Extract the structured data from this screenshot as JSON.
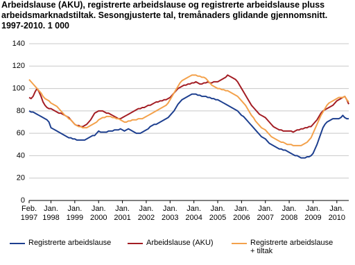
{
  "chart_data": {
    "type": "line",
    "title": "Arbeidslause (AKU), registrerte arbeidslause og registrerte arbeidslause pluss arbeidsmarknadstiltak. Sesongjusterte tal, tremånaders glidande gjennomsnitt. 1997-2010. 1 000",
    "categories": [
      "Feb. 1997",
      null,
      null,
      null,
      null,
      null,
      null,
      null,
      null,
      null,
      null,
      "Jan. 1998",
      null,
      null,
      null,
      null,
      null,
      null,
      null,
      null,
      null,
      null,
      null,
      "Jan. 1999",
      null,
      null,
      null,
      null,
      null,
      null,
      null,
      null,
      null,
      null,
      null,
      "Jan. 2000",
      null,
      null,
      null,
      null,
      null,
      null,
      null,
      null,
      null,
      null,
      null,
      "Jan. 2001",
      null,
      null,
      null,
      null,
      null,
      null,
      null,
      null,
      null,
      null,
      null,
      "Jan. 2002",
      null,
      null,
      null,
      null,
      null,
      null,
      null,
      null,
      null,
      null,
      null,
      "Jan. 2003",
      null,
      null,
      null,
      null,
      null,
      null,
      null,
      null,
      null,
      null,
      null,
      "Jan. 2004",
      null,
      null,
      null,
      null,
      null,
      null,
      null,
      null,
      null,
      null,
      null,
      "Jan. 2005",
      null,
      null,
      null,
      null,
      null,
      null,
      null,
      null,
      null,
      null,
      null,
      "Jan. 2006",
      null,
      null,
      null,
      null,
      null,
      null,
      null,
      null,
      null,
      null,
      null,
      "Jan. 2007",
      null,
      null,
      null,
      null,
      null,
      null,
      null,
      null,
      null,
      null,
      null,
      "Jan. 2008",
      null,
      null,
      null,
      null,
      null,
      null,
      null,
      null,
      null,
      null,
      null,
      "Jan. 2009",
      null,
      null,
      null,
      null,
      null,
      null,
      null,
      null,
      null,
      null,
      null,
      "Jan. 2010",
      null,
      null,
      null,
      null,
      null,
      null
    ],
    "series": [
      {
        "name": "Registrerte arbeidslause",
        "color": "#1d3f8f",
        "values": [
          80,
          79,
          79,
          78,
          77,
          76,
          75,
          74,
          73,
          72,
          70,
          65,
          64,
          63,
          62,
          61,
          60,
          59,
          58,
          57,
          56,
          56,
          55,
          55,
          54,
          54,
          54,
          54,
          54,
          55,
          56,
          57,
          58,
          58,
          60,
          62,
          61,
          61,
          61,
          61,
          62,
          62,
          62,
          63,
          63,
          63,
          64,
          63,
          62,
          63,
          64,
          63,
          62,
          61,
          60,
          60,
          60,
          61,
          62,
          63,
          64,
          66,
          67,
          68,
          68,
          69,
          70,
          71,
          72,
          73,
          74,
          76,
          78,
          80,
          83,
          86,
          88,
          90,
          91,
          92,
          93,
          94,
          95,
          95,
          95,
          94,
          94,
          93,
          93,
          93,
          92,
          92,
          91,
          91,
          90,
          90,
          89,
          88,
          87,
          86,
          85,
          84,
          83,
          82,
          81,
          80,
          78,
          76,
          75,
          73,
          71,
          69,
          67,
          65,
          63,
          61,
          59,
          57,
          56,
          55,
          53,
          51,
          50,
          49,
          48,
          47,
          46,
          46,
          45,
          45,
          44,
          43,
          42,
          41,
          40,
          40,
          39,
          38,
          38,
          38,
          39,
          39,
          40,
          42,
          46,
          50,
          55,
          60,
          65,
          68,
          70,
          71,
          72,
          73,
          73,
          73,
          73,
          74,
          76,
          74,
          73,
          73
        ]
      },
      {
        "name": "Arbeidslause (AKU)",
        "color": "#a31d24",
        "values": [
          92,
          91,
          93,
          97,
          100,
          97,
          93,
          88,
          85,
          83,
          82,
          82,
          81,
          80,
          79,
          78,
          78,
          77,
          76,
          75,
          74,
          72,
          70,
          68,
          67,
          67,
          66,
          66,
          67,
          68,
          70,
          72,
          75,
          78,
          79,
          80,
          80,
          80,
          79,
          78,
          78,
          77,
          76,
          75,
          74,
          73,
          73,
          74,
          75,
          76,
          77,
          78,
          79,
          80,
          81,
          82,
          82,
          83,
          83,
          84,
          85,
          85,
          86,
          87,
          88,
          88,
          89,
          89,
          90,
          90,
          91,
          92,
          94,
          96,
          98,
          100,
          101,
          102,
          103,
          103,
          104,
          104,
          105,
          105,
          106,
          105,
          104,
          104,
          105,
          105,
          106,
          105,
          105,
          106,
          106,
          106,
          107,
          108,
          109,
          110,
          112,
          111,
          110,
          109,
          108,
          106,
          103,
          100,
          97,
          94,
          91,
          88,
          85,
          83,
          81,
          79,
          77,
          76,
          75,
          74,
          72,
          70,
          68,
          66,
          65,
          64,
          63,
          63,
          62,
          62,
          62,
          62,
          62,
          61,
          62,
          63,
          63,
          64,
          64,
          65,
          65,
          66,
          66,
          68,
          70,
          72,
          75,
          78,
          80,
          81,
          82,
          83,
          84,
          85,
          87,
          89,
          90,
          91,
          92,
          93,
          90,
          86
        ]
      },
      {
        "name": "Registrerte arbeidslause + tiltak",
        "color": "#f3a14b",
        "values": [
          108,
          106,
          104,
          102,
          100,
          98,
          96,
          93,
          91,
          90,
          89,
          87,
          86,
          85,
          84,
          82,
          80,
          78,
          76,
          75,
          73,
          72,
          70,
          68,
          67,
          66,
          66,
          65,
          65,
          65,
          66,
          67,
          68,
          69,
          70,
          72,
          73,
          74,
          74,
          75,
          75,
          75,
          74,
          74,
          73,
          73,
          72,
          71,
          70,
          70,
          71,
          71,
          72,
          72,
          72,
          73,
          73,
          73,
          74,
          75,
          76,
          77,
          78,
          79,
          80,
          81,
          82,
          83,
          84,
          85,
          87,
          90,
          93,
          96,
          99,
          102,
          105,
          107,
          108,
          109,
          110,
          111,
          112,
          112,
          112,
          111,
          111,
          110,
          110,
          109,
          107,
          105,
          103,
          102,
          101,
          100,
          100,
          99,
          99,
          98,
          98,
          97,
          96,
          95,
          94,
          93,
          91,
          89,
          87,
          85,
          82,
          79,
          76,
          74,
          71,
          69,
          67,
          65,
          64,
          63,
          61,
          59,
          57,
          56,
          55,
          54,
          53,
          52,
          52,
          51,
          50,
          50,
          50,
          49,
          49,
          49,
          49,
          49,
          50,
          51,
          52,
          54,
          56,
          60,
          64,
          68,
          72,
          76,
          79,
          82,
          85,
          87,
          88,
          89,
          90,
          91,
          92,
          92,
          92,
          93,
          90,
          88
        ]
      }
    ],
    "ylim": [
      0,
      140
    ],
    "yticks": [
      0,
      20,
      40,
      60,
      80,
      100,
      120,
      140
    ],
    "grid": true
  }
}
